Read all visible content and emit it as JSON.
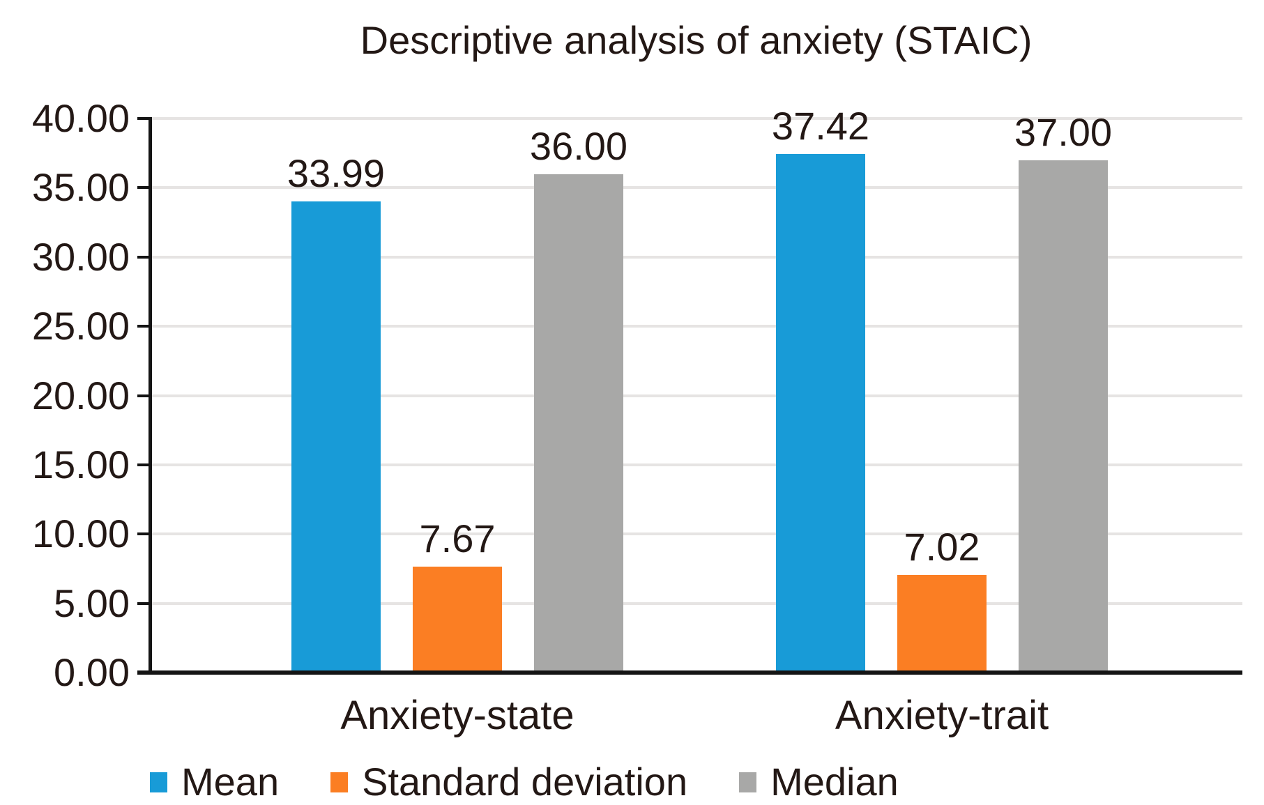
{
  "chart_data": {
    "type": "bar",
    "title": "Descriptive analysis of anxiety (STAIC)",
    "categories": [
      "Anxiety-state",
      "Anxiety-trait"
    ],
    "series": [
      {
        "name": "Mean",
        "color": "#189BD7",
        "values": [
          33.99,
          37.42
        ],
        "labels": [
          "33.99",
          "37.42"
        ]
      },
      {
        "name": "Standard deviation",
        "color": "#FB7E23",
        "values": [
          7.67,
          7.02
        ],
        "labels": [
          "7.67",
          "7.02"
        ]
      },
      {
        "name": "Median",
        "color": "#A8A8A7",
        "values": [
          36.0,
          37.0
        ],
        "labels": [
          "36.00",
          "37.00"
        ]
      }
    ],
    "xlabel": "",
    "ylabel": "",
    "ylim": [
      0,
      40
    ],
    "y_tick_step": 5,
    "y_tick_labels": [
      "0.00",
      "5.00",
      "10.00",
      "15.00",
      "20.00",
      "25.00",
      "30.00",
      "35.00",
      "40.00"
    ],
    "grid": true,
    "legend": {
      "position": "bottom",
      "entries": [
        "Mean",
        "Standard deviation",
        "Median"
      ]
    },
    "colors": {
      "text": "#231815",
      "axis": "#141414",
      "gridline": "#E6E4E3",
      "background": "#FFFFFF"
    }
  }
}
